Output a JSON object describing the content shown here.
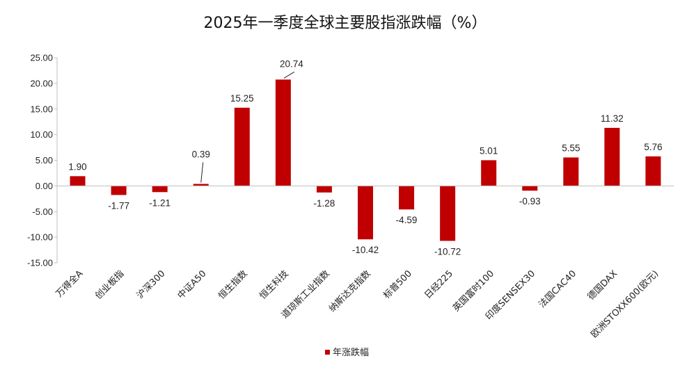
{
  "chart_data": {
    "type": "bar",
    "title": "2025年一季度全球主要股指涨跌幅（%）",
    "categories": [
      "万得全A",
      "创业板指",
      "沪深300",
      "中证A50",
      "恒生指数",
      "恒生科技",
      "道琼斯工业指数",
      "纳斯达克指数",
      "标普500",
      "日经225",
      "英国富时100",
      "印度SENSEX30",
      "法国CAC40",
      "德国DAX",
      "欧洲STOXX600(欧元)"
    ],
    "series": [
      {
        "name": "年涨跌幅",
        "color": "#c00000",
        "values": [
          1.9,
          -1.77,
          -1.21,
          0.39,
          15.25,
          20.74,
          -1.28,
          -10.42,
          -4.59,
          -10.72,
          5.01,
          -0.93,
          5.55,
          11.32,
          5.76
        ]
      }
    ],
    "data_labels": [
      "1.90",
      "-1.77",
      "-1.21",
      "0.39",
      "15.25",
      "20.74",
      "-1.28",
      "-10.42",
      "-4.59",
      "-10.72",
      "5.01",
      "-0.93",
      "5.55",
      "11.32",
      "5.76"
    ],
    "yticks": [
      "25.00",
      "20.00",
      "15.00",
      "10.00",
      "5.00",
      "0.00",
      "-5.00",
      "-10.00",
      "-15.00"
    ],
    "ylim": [
      -15,
      25
    ],
    "legend": "bottom",
    "grid": false
  }
}
